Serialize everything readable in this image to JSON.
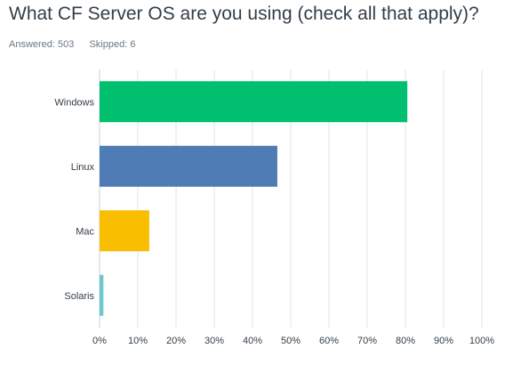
{
  "header": {
    "title": "What CF Server OS are you using (check all that apply)?",
    "answered_label": "Answered: 503",
    "skipped_label": "Skipped: 6"
  },
  "chart_data": {
    "type": "bar",
    "orientation": "horizontal",
    "categories": [
      "Windows",
      "Linux",
      "Mac",
      "Solaris"
    ],
    "values": [
      80.5,
      46.5,
      13,
      1
    ],
    "colors": [
      "#00bf6f",
      "#507cb6",
      "#f9be00",
      "#6bc8cd"
    ],
    "xlim": [
      0,
      100
    ],
    "xticks": [
      "0%",
      "10%",
      "20%",
      "30%",
      "40%",
      "50%",
      "60%",
      "70%",
      "80%",
      "90%",
      "100%"
    ],
    "grid": true,
    "gridColor": "#dfe3e6",
    "axisColor": "#c9d0d6"
  }
}
